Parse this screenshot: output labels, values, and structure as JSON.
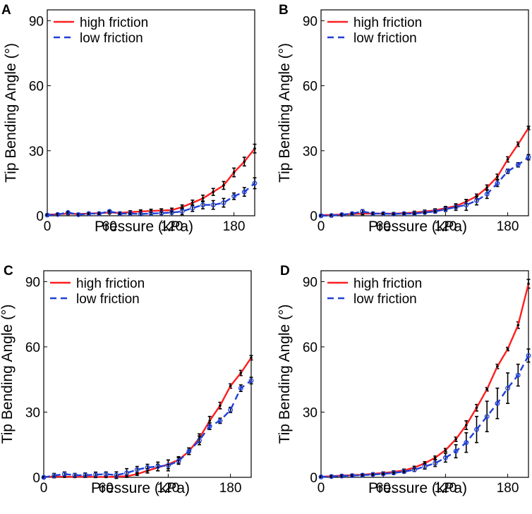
{
  "chart_data": [
    {
      "panel": "A",
      "type": "line",
      "xlabel": "Pressure (kPa)",
      "ylabel": "Tip Bending Angle (°)",
      "xlim": [
        0,
        200
      ],
      "ylim": [
        0,
        95
      ],
      "xticks": [
        0,
        60,
        120,
        180
      ],
      "yticks": [
        0,
        30,
        60,
        90
      ],
      "legend_position": "top-left",
      "x": [
        0,
        10,
        20,
        30,
        40,
        50,
        60,
        70,
        80,
        90,
        100,
        110,
        120,
        130,
        140,
        150,
        160,
        170,
        180,
        190,
        200
      ],
      "series": [
        {
          "name": "high friction",
          "color": "#ff1f1f",
          "dash": "solid",
          "marker": "dot",
          "values": [
            0.5,
            0.7,
            1.0,
            0.8,
            1.0,
            1.2,
            1.5,
            1.3,
            1.7,
            2.0,
            2.2,
            2.4,
            2.6,
            4.0,
            6.0,
            8.0,
            11.0,
            14.0,
            20.0,
            25.0,
            31.0
          ],
          "errors": [
            0.3,
            0.4,
            0.5,
            0.4,
            0.5,
            0.5,
            0.6,
            0.5,
            0.6,
            0.7,
            0.8,
            0.8,
            0.9,
            1.0,
            1.2,
            1.5,
            1.6,
            1.8,
            2.0,
            2.0,
            2.0
          ]
        },
        {
          "name": "low friction",
          "color": "#1f3fd8",
          "dash": "dashed",
          "marker": "circle",
          "values": [
            0.3,
            0.6,
            1.5,
            0.5,
            1.0,
            1.0,
            2.0,
            1.0,
            1.0,
            0.8,
            1.0,
            1.2,
            1.5,
            2.0,
            3.5,
            5.0,
            5.0,
            6.0,
            9.0,
            11.0,
            15.0
          ],
          "errors": [
            0.3,
            0.4,
            0.5,
            0.4,
            0.5,
            0.5,
            0.6,
            0.5,
            0.5,
            0.5,
            0.6,
            0.6,
            0.7,
            1.5,
            1.5,
            1.8,
            2.0,
            2.0,
            1.5,
            2.0,
            2.5
          ]
        }
      ]
    },
    {
      "panel": "B",
      "type": "line",
      "xlabel": "Pressure (kPa)",
      "ylabel": "Tip Bending Angle (°)",
      "xlim": [
        0,
        200
      ],
      "ylim": [
        0,
        95
      ],
      "xticks": [
        0,
        60,
        120,
        180
      ],
      "yticks": [
        0,
        30,
        60,
        90
      ],
      "legend_position": "top-left",
      "x": [
        0,
        10,
        20,
        30,
        40,
        50,
        60,
        70,
        80,
        90,
        100,
        110,
        120,
        130,
        140,
        150,
        160,
        170,
        180,
        190,
        200
      ],
      "series": [
        {
          "name": "high friction",
          "color": "#ff1f1f",
          "dash": "solid",
          "marker": "dot",
          "values": [
            0.3,
            0.4,
            0.6,
            0.8,
            1.0,
            1.0,
            1.0,
            1.0,
            1.2,
            1.5,
            2.0,
            2.5,
            3.5,
            4.5,
            6.5,
            9.0,
            13.0,
            18.0,
            26.0,
            33.0,
            40.5
          ],
          "errors": [
            0.3,
            0.3,
            0.4,
            0.4,
            0.5,
            0.5,
            0.5,
            0.5,
            0.5,
            0.6,
            0.6,
            0.7,
            0.8,
            0.8,
            1.0,
            1.0,
            1.2,
            1.2,
            1.2,
            1.0,
            0.8
          ]
        },
        {
          "name": "low friction",
          "color": "#1f3fd8",
          "dash": "dashed",
          "marker": "circle",
          "values": [
            0.0,
            0.1,
            0.5,
            1.0,
            2.0,
            1.0,
            1.0,
            0.8,
            1.0,
            1.0,
            1.5,
            2.0,
            3.0,
            4.0,
            5.0,
            7.0,
            10.0,
            15.0,
            20.5,
            23.5,
            27.0
          ],
          "errors": [
            0.3,
            0.3,
            0.4,
            0.5,
            0.8,
            0.6,
            0.5,
            0.5,
            0.5,
            0.5,
            0.6,
            0.8,
            1.0,
            1.5,
            2.5,
            2.0,
            2.0,
            1.5,
            1.0,
            1.0,
            1.2
          ]
        }
      ]
    },
    {
      "panel": "C",
      "type": "line",
      "xlabel": "Pressure (kPa)",
      "ylabel": "Tip Bending Angle (°)",
      "xlim": [
        0,
        200
      ],
      "ylim": [
        0,
        95
      ],
      "xticks": [
        0,
        60,
        120,
        180
      ],
      "yticks": [
        0,
        30,
        60,
        90
      ],
      "legend_position": "top-left",
      "x": [
        0,
        10,
        20,
        30,
        40,
        50,
        60,
        70,
        80,
        90,
        100,
        110,
        120,
        130,
        140,
        150,
        160,
        170,
        180,
        190,
        200
      ],
      "series": [
        {
          "name": "high friction",
          "color": "#ff1f1f",
          "dash": "solid",
          "marker": "dot",
          "values": [
            0.2,
            0.3,
            0.3,
            0.2,
            0.3,
            0.2,
            0.2,
            0.3,
            0.5,
            1.5,
            3.0,
            4.5,
            6.0,
            8.0,
            12.0,
            18.0,
            26.0,
            33.0,
            42.0,
            48.0,
            55.0
          ],
          "errors": [
            0.3,
            0.3,
            0.3,
            0.3,
            0.3,
            0.3,
            0.3,
            0.3,
            0.4,
            0.6,
            1.0,
            1.5,
            2.0,
            1.5,
            1.5,
            2.0,
            2.0,
            1.5,
            1.0,
            1.2,
            1.0
          ]
        },
        {
          "name": "low friction",
          "color": "#1f3fd8",
          "dash": "dashed",
          "marker": "circle",
          "values": [
            0.0,
            0.8,
            1.5,
            1.0,
            1.0,
            1.2,
            1.5,
            1.0,
            2.0,
            3.5,
            4.5,
            5.0,
            5.5,
            7.5,
            12.0,
            17.0,
            23.5,
            26.0,
            31.0,
            41.0,
            44.5
          ],
          "errors": [
            0.3,
            1.0,
            1.0,
            0.8,
            1.0,
            1.2,
            1.0,
            1.5,
            2.0,
            1.5,
            1.5,
            2.0,
            2.5,
            1.5,
            1.5,
            2.0,
            1.5,
            1.2,
            1.2,
            1.5,
            1.5
          ]
        }
      ]
    },
    {
      "panel": "D",
      "type": "line",
      "xlabel": "Pressure (kPa)",
      "ylabel": "Tip Bending Angle (°)",
      "xlim": [
        0,
        200
      ],
      "ylim": [
        0,
        95
      ],
      "xticks": [
        0,
        60,
        120,
        180
      ],
      "yticks": [
        0,
        30,
        60,
        90
      ],
      "legend_position": "top-left",
      "x": [
        0,
        10,
        20,
        30,
        40,
        50,
        60,
        70,
        80,
        90,
        100,
        110,
        120,
        130,
        140,
        150,
        160,
        170,
        180,
        190,
        200
      ],
      "series": [
        {
          "name": "high friction",
          "color": "#ff1f1f",
          "dash": "solid",
          "marker": "dot",
          "values": [
            0.3,
            0.5,
            0.8,
            1.0,
            1.2,
            1.6,
            2.0,
            2.5,
            3.2,
            4.5,
            6.5,
            9.0,
            12.5,
            17.5,
            24.0,
            32.0,
            40.5,
            51.0,
            59.0,
            70.0,
            89.0
          ],
          "errors": [
            0.3,
            0.5,
            0.5,
            0.5,
            0.5,
            0.5,
            0.5,
            0.5,
            0.6,
            0.6,
            0.7,
            0.8,
            0.8,
            1.0,
            2.0,
            1.5,
            0.8,
            1.0,
            0.8,
            1.5,
            2.0
          ]
        },
        {
          "name": "low friction",
          "color": "#1f3fd8",
          "dash": "dashed",
          "marker": "circle",
          "values": [
            0.2,
            0.4,
            0.6,
            0.8,
            1.0,
            1.3,
            1.6,
            2.0,
            2.6,
            3.5,
            5.0,
            6.5,
            9.0,
            12.0,
            16.0,
            22.0,
            28.0,
            34.0,
            41.0,
            47.0,
            56.0
          ],
          "errors": [
            0.3,
            0.5,
            0.5,
            0.5,
            0.5,
            0.5,
            0.5,
            0.6,
            0.6,
            0.8,
            1.2,
            1.5,
            2.0,
            3.0,
            4.5,
            6.0,
            7.0,
            7.0,
            7.0,
            5.0,
            3.0
          ]
        }
      ]
    }
  ]
}
